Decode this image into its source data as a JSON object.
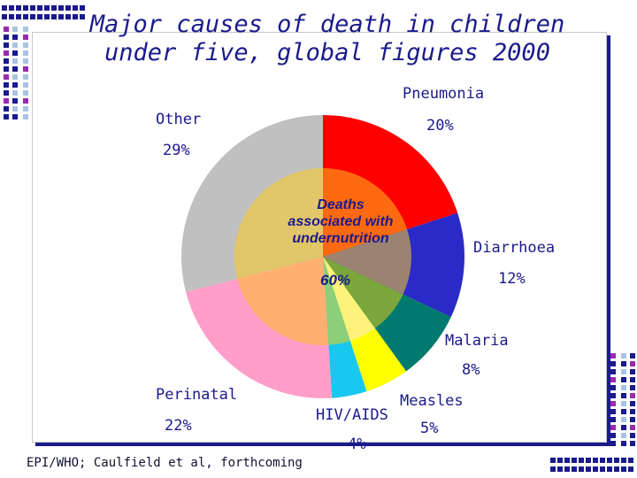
{
  "slide": {
    "title_line1": "Major causes of death in children",
    "title_line2": "under five, global figures 2000",
    "source": "EPI/WHO; Caulfield et al, forthcoming"
  },
  "colors": {
    "title": "#1a1a8c",
    "frame_shadow": "#1a1a8c",
    "deco_blue": "#1a1a8c",
    "deco_purple": "#9a2ab0",
    "deco_light": "#a8c4e0"
  },
  "chart_data": {
    "type": "pie",
    "title": "Major causes of death in children under five, global figures 2000",
    "slices": [
      {
        "label": "Pneumonia",
        "value": 20,
        "value_label": "20%",
        "color": "#ff0000"
      },
      {
        "label": "Diarrhoea",
        "value": 12,
        "value_label": "12%",
        "color": "#2a2ac8"
      },
      {
        "label": "Malaria",
        "value": 8,
        "value_label": "8%",
        "color": "#007a6e"
      },
      {
        "label": "Measles",
        "value": 5,
        "value_label": "5%",
        "color": "#ffff00"
      },
      {
        "label": "HIV/AIDS",
        "value": 4,
        "value_label": "4%",
        "color": "#18c8f0"
      },
      {
        "label": "Perinatal",
        "value": 22,
        "value_label": "22%",
        "color": "#ff9ec8"
      },
      {
        "label": "Other",
        "value": 29,
        "value_label": "29%",
        "color": "#c0c0c0"
      }
    ],
    "inner_overlay": {
      "label": "Deaths associated with undernutrition",
      "label_lines": [
        "Deaths",
        "associated with",
        "undernutrition"
      ],
      "value": 60,
      "value_label": "60%",
      "colors": {
        "Pneumonia": "#ff6a10",
        "Diarrhoea": "#9c8270",
        "Malaria": "#7aa63c",
        "Measles": "#fff27a",
        "HIV/AIDS": "#8ccf78",
        "Perinatal": "#ffb070",
        "Other": "#e2c66a"
      }
    }
  }
}
